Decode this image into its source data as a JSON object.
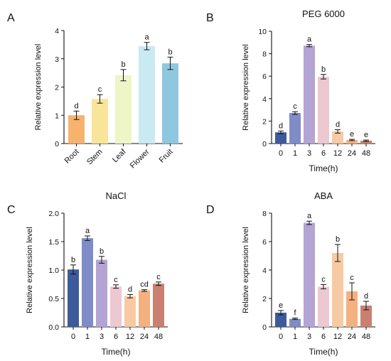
{
  "chart_data": [
    {
      "panel": "A",
      "type": "bar",
      "title": "",
      "xlabel": "",
      "ylabel": "Relative expression level",
      "ylim": [
        0,
        4
      ],
      "yticks": [
        "0",
        "1",
        "2",
        "3",
        "4"
      ],
      "categories": [
        "Root",
        "Stem",
        "Leaf",
        "Flower",
        "Fruit"
      ],
      "values": [
        1.0,
        1.58,
        2.42,
        3.45,
        2.84
      ],
      "errors": [
        0.15,
        0.15,
        0.2,
        0.13,
        0.22
      ],
      "letters": [
        "d",
        "c",
        "b",
        "a",
        "b"
      ],
      "colors": [
        "#f7b26e",
        "#f8e59a",
        "#eef5c6",
        "#c9eaf2",
        "#8fc7de"
      ],
      "rotate_labels": true,
      "grid": false
    },
    {
      "panel": "B",
      "type": "bar",
      "title": "PEG 6000",
      "xlabel": "Time(h)",
      "ylabel": "Relative expression level",
      "ylim": [
        0,
        10
      ],
      "yticks": [
        "0",
        "2",
        "4",
        "6",
        "8",
        "10"
      ],
      "categories": [
        "0",
        "1",
        "3",
        "6",
        "12",
        "24",
        "48"
      ],
      "values": [
        1.0,
        2.72,
        8.72,
        5.95,
        1.08,
        0.32,
        0.25
      ],
      "errors": [
        0.12,
        0.12,
        0.1,
        0.2,
        0.15,
        0.06,
        0.06
      ],
      "letters": [
        "d",
        "c",
        "a",
        "b",
        "d",
        "e",
        "e"
      ],
      "colors": [
        "#3d5a9b",
        "#7f8cc8",
        "#b3a4d4",
        "#ecc8d2",
        "#f7caa4",
        "#f4b07e",
        "#c98071"
      ],
      "rotate_labels": false,
      "grid": false
    },
    {
      "panel": "C",
      "type": "bar",
      "title": "NaCl",
      "xlabel": "Time(h)",
      "ylabel": "Relative expression level",
      "ylim": [
        0,
        2
      ],
      "yticks": [
        "0.0",
        "0.5",
        "1.0",
        "1.5",
        "2.0"
      ],
      "categories": [
        "0",
        "1",
        "3",
        "6",
        "12",
        "24",
        "48"
      ],
      "values": [
        1.01,
        1.56,
        1.18,
        0.71,
        0.54,
        0.64,
        0.76
      ],
      "errors": [
        0.08,
        0.04,
        0.06,
        0.03,
        0.03,
        0.015,
        0.03
      ],
      "letters": [
        "b",
        "a",
        "b",
        "c",
        "d",
        "cd",
        "c"
      ],
      "colors": [
        "#3d5a9b",
        "#7f8cc8",
        "#b3a4d4",
        "#ecc8d2",
        "#f7caa4",
        "#f4b07e",
        "#c98071"
      ],
      "rotate_labels": false,
      "grid": false
    },
    {
      "panel": "D",
      "type": "bar",
      "title": "ABA",
      "xlabel": "Time(h)",
      "ylabel": "Relative expression level",
      "ylim": [
        0,
        8
      ],
      "yticks": [
        "0",
        "2",
        "4",
        "6",
        "8"
      ],
      "categories": [
        "0",
        "1",
        "3",
        "6",
        "12",
        "24",
        "48"
      ],
      "values": [
        1.0,
        0.57,
        7.32,
        2.83,
        5.2,
        2.5,
        1.5
      ],
      "errors": [
        0.15,
        0.05,
        0.12,
        0.15,
        0.6,
        0.6,
        0.3
      ],
      "letters": [
        "e",
        "f",
        "a",
        "c",
        "b",
        "c",
        "d"
      ],
      "colors": [
        "#3d5a9b",
        "#7f8cc8",
        "#b3a4d4",
        "#ecc8d2",
        "#f7caa4",
        "#f4b07e",
        "#c98071"
      ],
      "rotate_labels": false,
      "grid": false
    }
  ]
}
